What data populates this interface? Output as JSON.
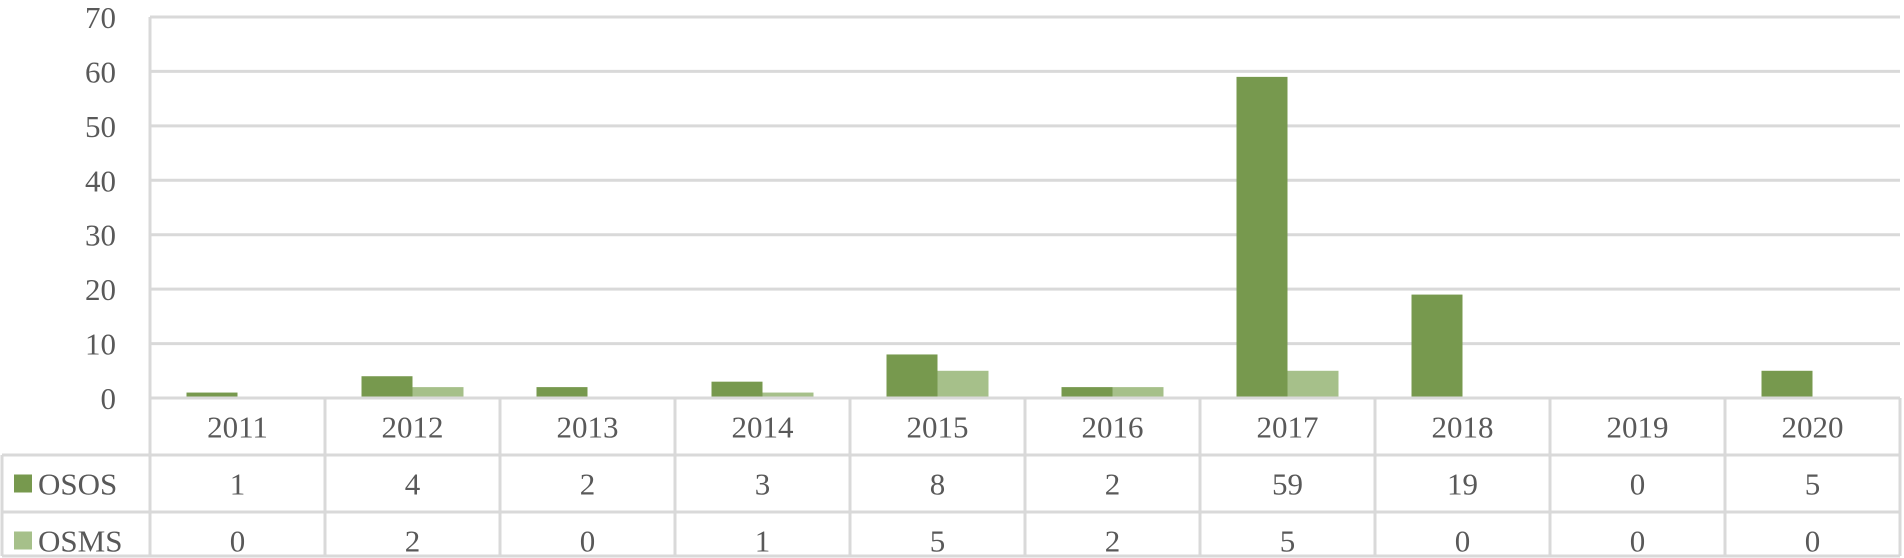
{
  "chart_data": {
    "type": "bar",
    "categories": [
      "2011",
      "2012",
      "2013",
      "2014",
      "2015",
      "2016",
      "2017",
      "2018",
      "2019",
      "2020"
    ],
    "series": [
      {
        "name": "OSOS",
        "values": [
          1,
          4,
          2,
          3,
          8,
          2,
          59,
          19,
          0,
          5
        ],
        "color": "#77994e"
      },
      {
        "name": "OSMS",
        "values": [
          0,
          2,
          0,
          1,
          5,
          2,
          5,
          0,
          0,
          0
        ],
        "color": "#a6c08a"
      }
    ],
    "ylim": [
      0,
      70
    ],
    "yticks": [
      0,
      10,
      20,
      30,
      40,
      50,
      60,
      70
    ],
    "grid": true,
    "legend": "data-table",
    "colors": {
      "grid": "#d9d9d9",
      "text": "#595959"
    }
  }
}
